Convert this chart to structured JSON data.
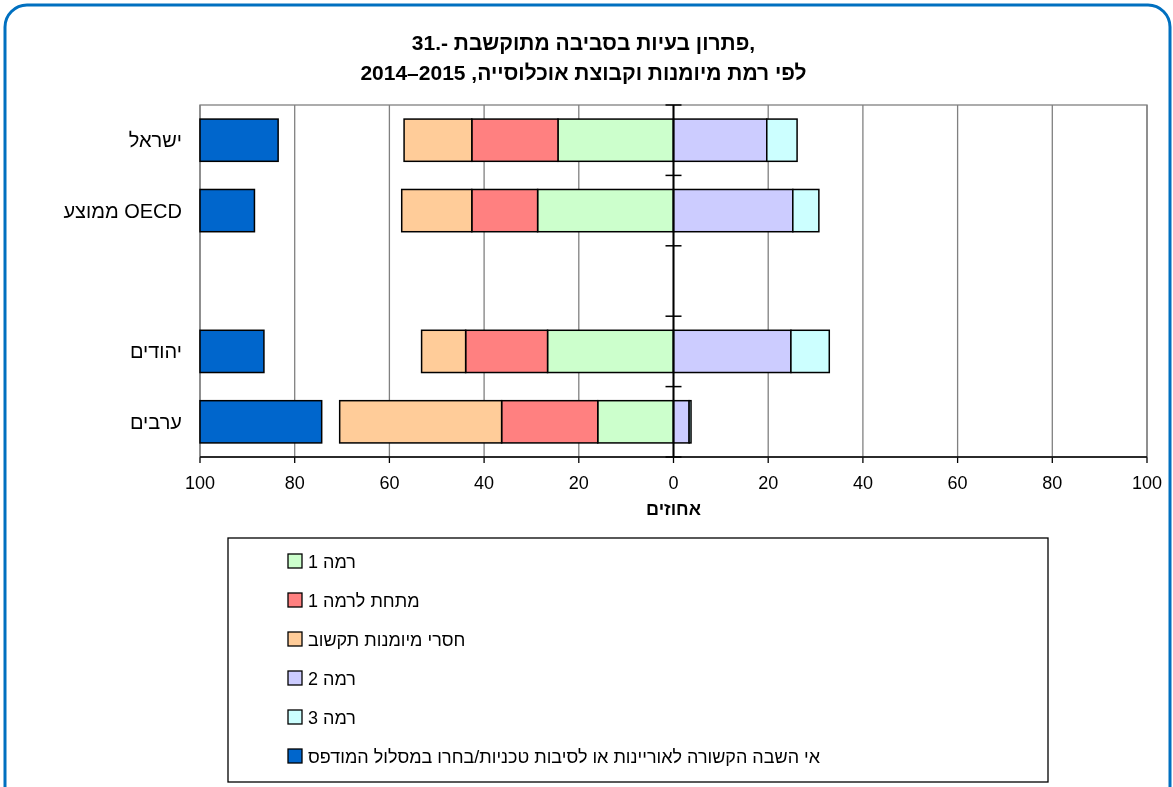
{
  "chart_data": {
    "type": "bar",
    "orientation": "horizontal",
    "title": "31.- פתרון בעיות בסביבה מתוקשבת,",
    "subtitle": "לפי רמת מיומנות וקבוצת אוכלוסייה, 2015–2014",
    "xlabel": "אחוזים",
    "categories": [
      "ישראל",
      "ממוצע OECD",
      null,
      "יהודים",
      "ערבים"
    ],
    "series": [
      {
        "name": "רמה 1",
        "color": "#ccffcc",
        "base": [
          0,
          0,
          null,
          0,
          0
        ],
        "values": [
          -24.4,
          -28.7,
          null,
          -26.6,
          -16.0
        ]
      },
      {
        "name": "מתחת לרמה 1",
        "color": "#ff8080",
        "base": [
          -24.4,
          -28.7,
          null,
          -26.6,
          -16.0
        ],
        "values": [
          -18.2,
          -13.9,
          null,
          -17.3,
          -20.3
        ]
      },
      {
        "name": "חסרי מיומנות תקשוב",
        "color": "#ffcc99",
        "base": [
          -42.6,
          -42.6,
          null,
          -43.9,
          -36.3
        ],
        "values": [
          -14.3,
          -14.8,
          null,
          -9.3,
          -34.2
        ]
      },
      {
        "name": "רמה 2",
        "color": "#ccccff",
        "base": [
          0,
          0,
          null,
          0,
          0
        ],
        "values": [
          19.7,
          25.2,
          null,
          24.8,
          3.3
        ]
      },
      {
        "name": "רמה 3",
        "color": "#ccffff",
        "base": [
          19.7,
          25.2,
          null,
          24.8,
          3.3
        ],
        "values": [
          6.4,
          5.5,
          null,
          8.1,
          0.4
        ]
      },
      {
        "name": "אי השבה הקשורה לאוריינות או לסיבות טכניות/בחרו במסלול המודפס",
        "color": "#0066cc",
        "base": [
          -100,
          -100,
          null,
          -100,
          -100
        ],
        "values": [
          16.5,
          11.5,
          null,
          13.5,
          25.7
        ]
      }
    ],
    "xlim": [
      -100,
      100
    ],
    "xticks": [
      {
        "value": -100,
        "label": "100"
      },
      {
        "value": -80,
        "label": "80"
      },
      {
        "value": -60,
        "label": "60"
      },
      {
        "value": -40,
        "label": "40"
      },
      {
        "value": -20,
        "label": "20"
      },
      0,
      20,
      40,
      60,
      80,
      100
    ],
    "grid": "x",
    "legend": "bottom"
  }
}
